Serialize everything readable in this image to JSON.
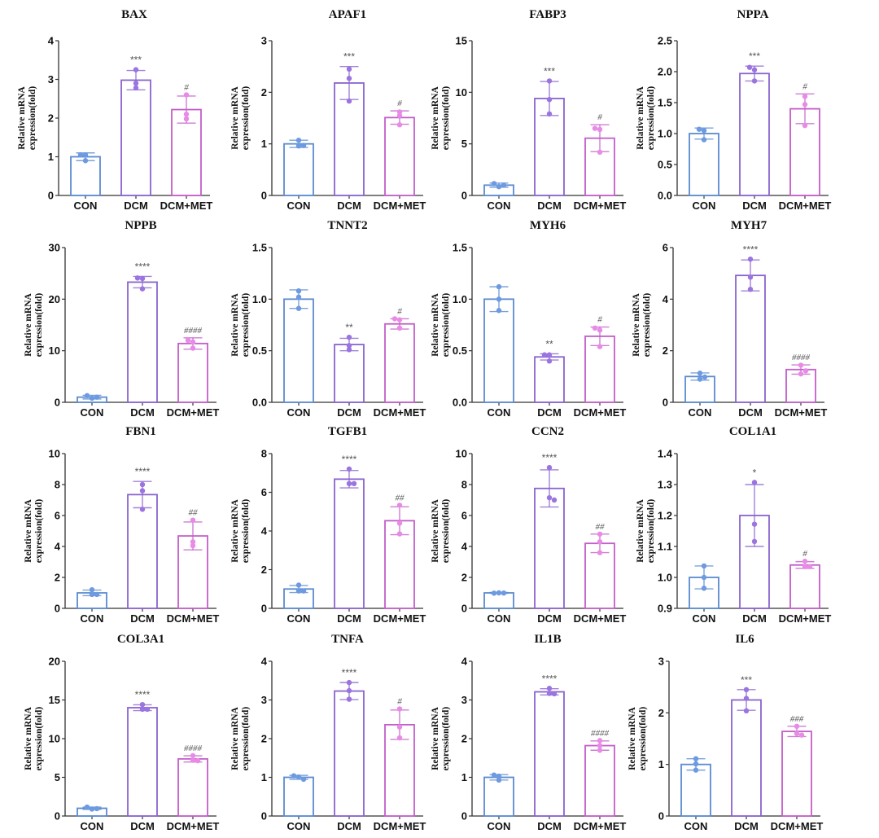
{
  "chart_data": {
    "type": "bar",
    "layout": "4x4 grid of bar charts with error bars and individual data points",
    "groups": [
      "CON",
      "DCM",
      "DCM+MET"
    ],
    "group_colors": [
      "#5b8bd0",
      "#8a63cf",
      "#c35ec9"
    ],
    "point_colors": [
      "#6d9ae0",
      "#9a74df",
      "#e88be6"
    ],
    "ylabel_lines": [
      "Relative mRNA",
      "expression(fold)"
    ],
    "panels": [
      {
        "title": "BAX",
        "ylim": [
          0,
          4
        ],
        "yticks": [
          "0",
          "1",
          "2",
          "3",
          "4"
        ],
        "ytick_values": [
          0,
          1,
          2,
          3,
          4
        ],
        "means": [
          1.0,
          2.98,
          2.22
        ],
        "errors": [
          0.1,
          0.25,
          0.35
        ],
        "points": [
          [
            1.05,
            1.05,
            0.9
          ],
          [
            3.25,
            2.9,
            2.78
          ],
          [
            2.6,
            2.1,
            1.98
          ]
        ],
        "sig_dcm": "***",
        "sig_met": "#"
      },
      {
        "title": "APAF1",
        "ylim": [
          0,
          3
        ],
        "yticks": [
          "0",
          "1",
          "2",
          "3"
        ],
        "ytick_values": [
          0,
          1,
          2,
          3
        ],
        "means": [
          1.0,
          2.18,
          1.51
        ],
        "errors": [
          0.07,
          0.32,
          0.13
        ],
        "points": [
          [
            1.07,
            0.96,
            0.97
          ],
          [
            2.45,
            2.27,
            1.83
          ],
          [
            1.62,
            1.55,
            1.37
          ]
        ],
        "sig_dcm": "***",
        "sig_met": "#"
      },
      {
        "title": "FABP3",
        "ylim": [
          0,
          15
        ],
        "yticks": [
          "0",
          "5",
          "10",
          "15"
        ],
        "ytick_values": [
          0,
          5,
          10,
          15
        ],
        "means": [
          1.0,
          9.4,
          5.55
        ],
        "errors": [
          0.2,
          1.65,
          1.3
        ],
        "points": [
          [
            1.15,
            0.85,
            1.0
          ],
          [
            11.1,
            9.3,
            7.9
          ],
          [
            6.5,
            6.4,
            4.2
          ]
        ],
        "sig_dcm": "***",
        "sig_met": "#"
      },
      {
        "title": "NPPA",
        "ylim": [
          0,
          2.5
        ],
        "yticks": [
          "0.0",
          "0.5",
          "1.0",
          "1.5",
          "2.0",
          "2.5"
        ],
        "ytick_values": [
          0,
          0.5,
          1,
          1.5,
          2,
          2.5
        ],
        "means": [
          1.0,
          1.97,
          1.4
        ],
        "errors": [
          0.09,
          0.12,
          0.24
        ],
        "points": [
          [
            1.07,
            1.05,
            0.9
          ],
          [
            2.07,
            2.03,
            1.85
          ],
          [
            1.6,
            1.47,
            1.13
          ]
        ],
        "sig_dcm": "***",
        "sig_met": "#"
      },
      {
        "title": "NPPB",
        "ylim": [
          0,
          30
        ],
        "yticks": [
          "0",
          "10",
          "20",
          "30"
        ],
        "ytick_values": [
          0,
          10,
          20,
          30
        ],
        "means": [
          1.0,
          23.3,
          11.4
        ],
        "errors": [
          0.35,
          1.1,
          1.1
        ],
        "points": [
          [
            1.3,
            0.8,
            1.0
          ],
          [
            24.1,
            24.0,
            22.0
          ],
          [
            12.0,
            11.7,
            10.5
          ]
        ],
        "sig_dcm": "****",
        "sig_met": "####"
      },
      {
        "title": "TNNT2",
        "ylim": [
          0,
          1.5
        ],
        "yticks": [
          "0.0",
          "0.5",
          "1.0",
          "1.5"
        ],
        "ytick_values": [
          0,
          0.5,
          1,
          1.5
        ],
        "means": [
          1.0,
          0.56,
          0.76
        ],
        "errors": [
          0.09,
          0.06,
          0.05
        ],
        "points": [
          [
            1.08,
            1.02,
            0.91
          ],
          [
            0.63,
            0.55,
            0.51
          ],
          [
            0.81,
            0.8,
            0.72
          ]
        ],
        "sig_dcm": "**",
        "sig_met": "#"
      },
      {
        "title": "MYH6",
        "ylim": [
          0,
          1.5
        ],
        "yticks": [
          "0.0",
          "0.5",
          "1.0",
          "1.5"
        ],
        "ytick_values": [
          0,
          0.5,
          1,
          1.5
        ],
        "means": [
          1.0,
          0.44,
          0.64
        ],
        "errors": [
          0.12,
          0.03,
          0.09
        ],
        "points": [
          [
            1.12,
            1.0,
            0.89
          ],
          [
            0.46,
            0.46,
            0.4
          ],
          [
            0.72,
            0.7,
            0.54
          ]
        ],
        "sig_dcm": "**",
        "sig_met": "#"
      },
      {
        "title": "MYH7",
        "ylim": [
          0,
          6
        ],
        "yticks": [
          "0",
          "2",
          "4",
          "6"
        ],
        "ytick_values": [
          0,
          2,
          4,
          6
        ],
        "means": [
          1.0,
          4.92,
          1.27
        ],
        "errors": [
          0.14,
          0.6,
          0.18
        ],
        "points": [
          [
            1.13,
            0.9,
            0.98
          ],
          [
            5.55,
            4.85,
            4.38
          ],
          [
            1.44,
            1.1,
            1.22
          ]
        ],
        "sig_dcm": "****",
        "sig_met": "####"
      },
      {
        "title": "FBN1",
        "ylim": [
          0,
          10
        ],
        "yticks": [
          "0",
          "2",
          "4",
          "6",
          "8",
          "10"
        ],
        "ytick_values": [
          0,
          2,
          4,
          6,
          8,
          10
        ],
        "means": [
          1.0,
          7.35,
          4.68
        ],
        "errors": [
          0.18,
          0.85,
          0.9
        ],
        "points": [
          [
            1.2,
            0.9,
            0.9
          ],
          [
            8.0,
            7.6,
            6.4
          ],
          [
            5.7,
            4.3,
            4.05
          ]
        ],
        "sig_dcm": "****",
        "sig_met": "##"
      },
      {
        "title": "TGFB1",
        "ylim": [
          0,
          8
        ],
        "yticks": [
          "0",
          "2",
          "4",
          "6",
          "8"
        ],
        "ytick_values": [
          0,
          2,
          4,
          6,
          8
        ],
        "means": [
          1.0,
          6.68,
          4.53
        ],
        "errors": [
          0.18,
          0.45,
          0.72
        ],
        "points": [
          [
            1.2,
            0.9,
            0.9
          ],
          [
            7.2,
            6.45,
            6.45
          ],
          [
            5.33,
            4.4,
            3.85
          ]
        ],
        "sig_dcm": "****",
        "sig_met": "##"
      },
      {
        "title": "CCN2",
        "ylim": [
          0,
          10
        ],
        "yticks": [
          "0",
          "2",
          "4",
          "6",
          "8",
          "10"
        ],
        "ytick_values": [
          0,
          2,
          4,
          6,
          8,
          10
        ],
        "means": [
          1.0,
          7.75,
          4.2
        ],
        "errors": [
          0.03,
          1.2,
          0.6
        ],
        "points": [
          [
            0.98,
            1.0,
            0.99
          ],
          [
            9.1,
            7.15,
            7.0
          ],
          [
            4.8,
            4.3,
            3.6
          ]
        ],
        "sig_dcm": "****",
        "sig_met": "##"
      },
      {
        "title": "COL1A1",
        "ylim": [
          0.9,
          1.4
        ],
        "yticks": [
          "0.9",
          "1.0",
          "1.1",
          "1.2",
          "1.3",
          "1.4"
        ],
        "ytick_values": [
          0.9,
          1.0,
          1.1,
          1.2,
          1.3,
          1.4
        ],
        "means": [
          1.0,
          1.2,
          1.04
        ],
        "errors": [
          0.037,
          0.1,
          0.011
        ],
        "points": [
          [
            1.037,
            1.0,
            0.965
          ],
          [
            1.307,
            1.172,
            1.116
          ],
          [
            1.052,
            1.035,
            1.035
          ]
        ],
        "sig_dcm": "*",
        "sig_met": "#"
      },
      {
        "title": "COL3A1",
        "ylim": [
          0,
          20
        ],
        "yticks": [
          "0",
          "5",
          "10",
          "15",
          "20"
        ],
        "ytick_values": [
          0,
          5,
          10,
          15,
          20
        ],
        "means": [
          1.0,
          14.0,
          7.38
        ],
        "errors": [
          0.15,
          0.38,
          0.4
        ],
        "points": [
          [
            1.15,
            0.9,
            0.95
          ],
          [
            14.4,
            13.8,
            13.8
          ],
          [
            7.8,
            7.2,
            7.15
          ]
        ],
        "sig_dcm": "****",
        "sig_met": "####"
      },
      {
        "title": "TNFA",
        "ylim": [
          0,
          4
        ],
        "yticks": [
          "0",
          "1",
          "2",
          "3",
          "4"
        ],
        "ytick_values": [
          0,
          1,
          2,
          3,
          4
        ],
        "means": [
          1.0,
          3.23,
          2.36
        ],
        "errors": [
          0.05,
          0.22,
          0.38
        ],
        "points": [
          [
            1.04,
            1.01,
            0.95
          ],
          [
            3.45,
            3.24,
            3.02
          ],
          [
            2.77,
            2.3,
            2.02
          ]
        ],
        "sig_dcm": "****",
        "sig_met": "#"
      },
      {
        "title": "IL1B",
        "ylim": [
          0,
          4
        ],
        "yticks": [
          "0",
          "1",
          "2",
          "3",
          "4"
        ],
        "ytick_values": [
          0,
          1,
          2,
          3,
          4
        ],
        "means": [
          1.0,
          3.21,
          1.82
        ],
        "errors": [
          0.07,
          0.08,
          0.12
        ],
        "points": [
          [
            1.06,
            1.03,
            0.93
          ],
          [
            3.3,
            3.17,
            3.16
          ],
          [
            1.95,
            1.82,
            1.7
          ]
        ],
        "sig_dcm": "****",
        "sig_met": "####"
      },
      {
        "title": "IL6",
        "ylim": [
          0,
          3
        ],
        "yticks": [
          "0",
          "1",
          "2",
          "3"
        ],
        "ytick_values": [
          0,
          1,
          2,
          3
        ],
        "means": [
          1.0,
          2.25,
          1.64
        ],
        "errors": [
          0.11,
          0.2,
          0.1
        ],
        "points": [
          [
            1.11,
            1.01,
            0.89
          ],
          [
            2.45,
            2.28,
            2.04
          ],
          [
            1.74,
            1.6,
            1.57
          ]
        ],
        "sig_dcm": "***",
        "sig_met": "###"
      }
    ]
  }
}
